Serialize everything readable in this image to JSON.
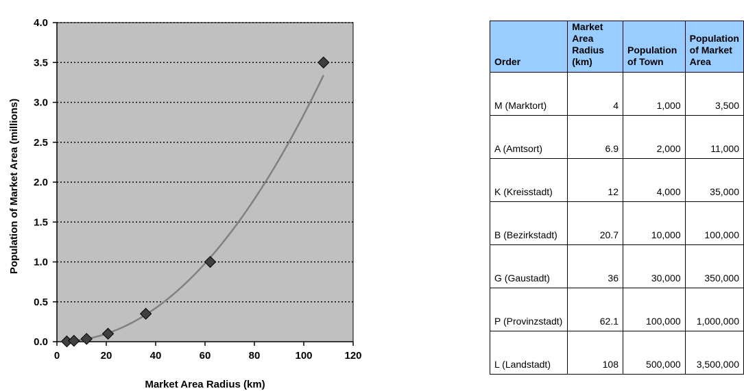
{
  "chart_data": {
    "type": "scatter",
    "xlabel": "Market Area Radius (km)",
    "ylabel": "Population of Market Area (millions)",
    "xlim": [
      0,
      120
    ],
    "ylim": [
      0,
      4.0
    ],
    "x_ticks": [
      "0",
      "20",
      "40",
      "60",
      "80",
      "100",
      "120"
    ],
    "y_ticks": [
      "0.0",
      "0.5",
      "1.0",
      "1.5",
      "2.0",
      "2.5",
      "3.0",
      "3.5",
      "4.0"
    ],
    "grid": "horizontal-dotted",
    "trendline": "power",
    "series": [
      {
        "x": [
          4,
          6.9,
          12,
          20.7,
          36,
          62.1,
          108
        ],
        "y": [
          0.0035,
          0.011,
          0.035,
          0.1,
          0.35,
          1.0,
          3.5
        ]
      }
    ],
    "colors": {
      "plot_background": "#c0c0c0",
      "marker": "#404040",
      "trendline": "#808080"
    }
  },
  "table": {
    "headers": [
      "Order",
      "Market Area Radius (km)",
      "Population of Town",
      "Population of Market Area"
    ],
    "rows": [
      [
        "M (Marktort)",
        "4",
        "1,000",
        "3,500"
      ],
      [
        "A (Amtsort)",
        "6.9",
        "2,000",
        "11,000"
      ],
      [
        "K (Kreisstadt)",
        "12",
        "4,000",
        "35,000"
      ],
      [
        "B (Bezirkstadt)",
        "20.7",
        "10,000",
        "100,000"
      ],
      [
        "G (Gaustadt)",
        "36",
        "30,000",
        "350,000"
      ],
      [
        "P (Provinzstadt)",
        "62.1",
        "100,000",
        "1,000,000"
      ],
      [
        "L (Landstadt)",
        "108",
        "500,000",
        "3,500,000"
      ]
    ],
    "header_color": "#99ccff"
  }
}
